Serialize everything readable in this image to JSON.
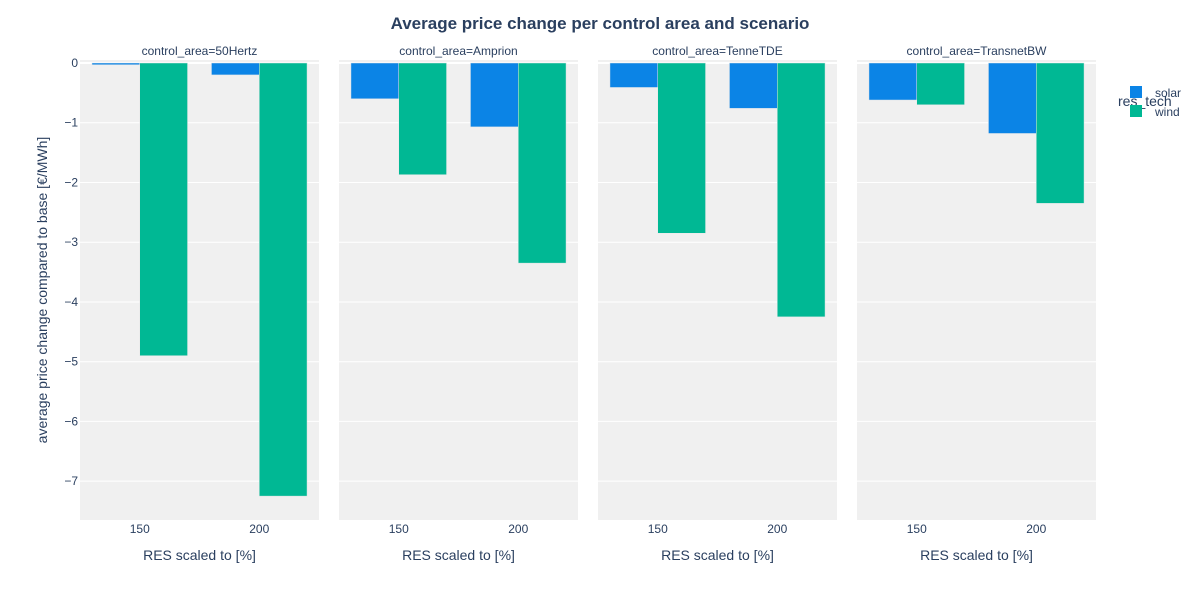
{
  "chart_data": {
    "type": "bar",
    "title": "Average price change per control area and scenario",
    "xlabel": "RES scaled to [%]",
    "ylabel": "average price change compared to base [€/MWh]",
    "ylim": [
      -7.65,
      0.05
    ],
    "yticks": [
      0,
      -1,
      -2,
      -3,
      -4,
      -5,
      -6,
      -7
    ],
    "ytick_labels": [
      "0",
      "−1",
      "−2",
      "−3",
      "−4",
      "−5",
      "−6",
      "−7"
    ],
    "categories": [
      "150",
      "200"
    ],
    "legend": {
      "title": "res_tech",
      "position": "top-right",
      "items": [
        {
          "name": "solar",
          "color": "#0b84e6"
        },
        {
          "name": "wind",
          "color": "#00b894"
        }
      ]
    },
    "facets": [
      {
        "label": "control_area=50Hertz",
        "series": [
          {
            "name": "solar",
            "values": [
              -0.03,
              -0.2
            ]
          },
          {
            "name": "wind",
            "values": [
              -4.9,
              -7.25
            ]
          }
        ]
      },
      {
        "label": "control_area=Amprion",
        "series": [
          {
            "name": "solar",
            "values": [
              -0.6,
              -1.07
            ]
          },
          {
            "name": "wind",
            "values": [
              -1.87,
              -3.35
            ]
          }
        ]
      },
      {
        "label": "control_area=TenneTDE",
        "series": [
          {
            "name": "solar",
            "values": [
              -0.41,
              -0.76
            ]
          },
          {
            "name": "wind",
            "values": [
              -2.85,
              -4.25
            ]
          }
        ]
      },
      {
        "label": "control_area=TransnetBW",
        "series": [
          {
            "name": "solar",
            "values": [
              -0.62,
              -1.18
            ]
          },
          {
            "name": "wind",
            "values": [
              -0.7,
              -2.35
            ]
          }
        ]
      }
    ],
    "grid": true,
    "plot_bg": "#f0f0f0",
    "grid_color": "#ffffff"
  }
}
